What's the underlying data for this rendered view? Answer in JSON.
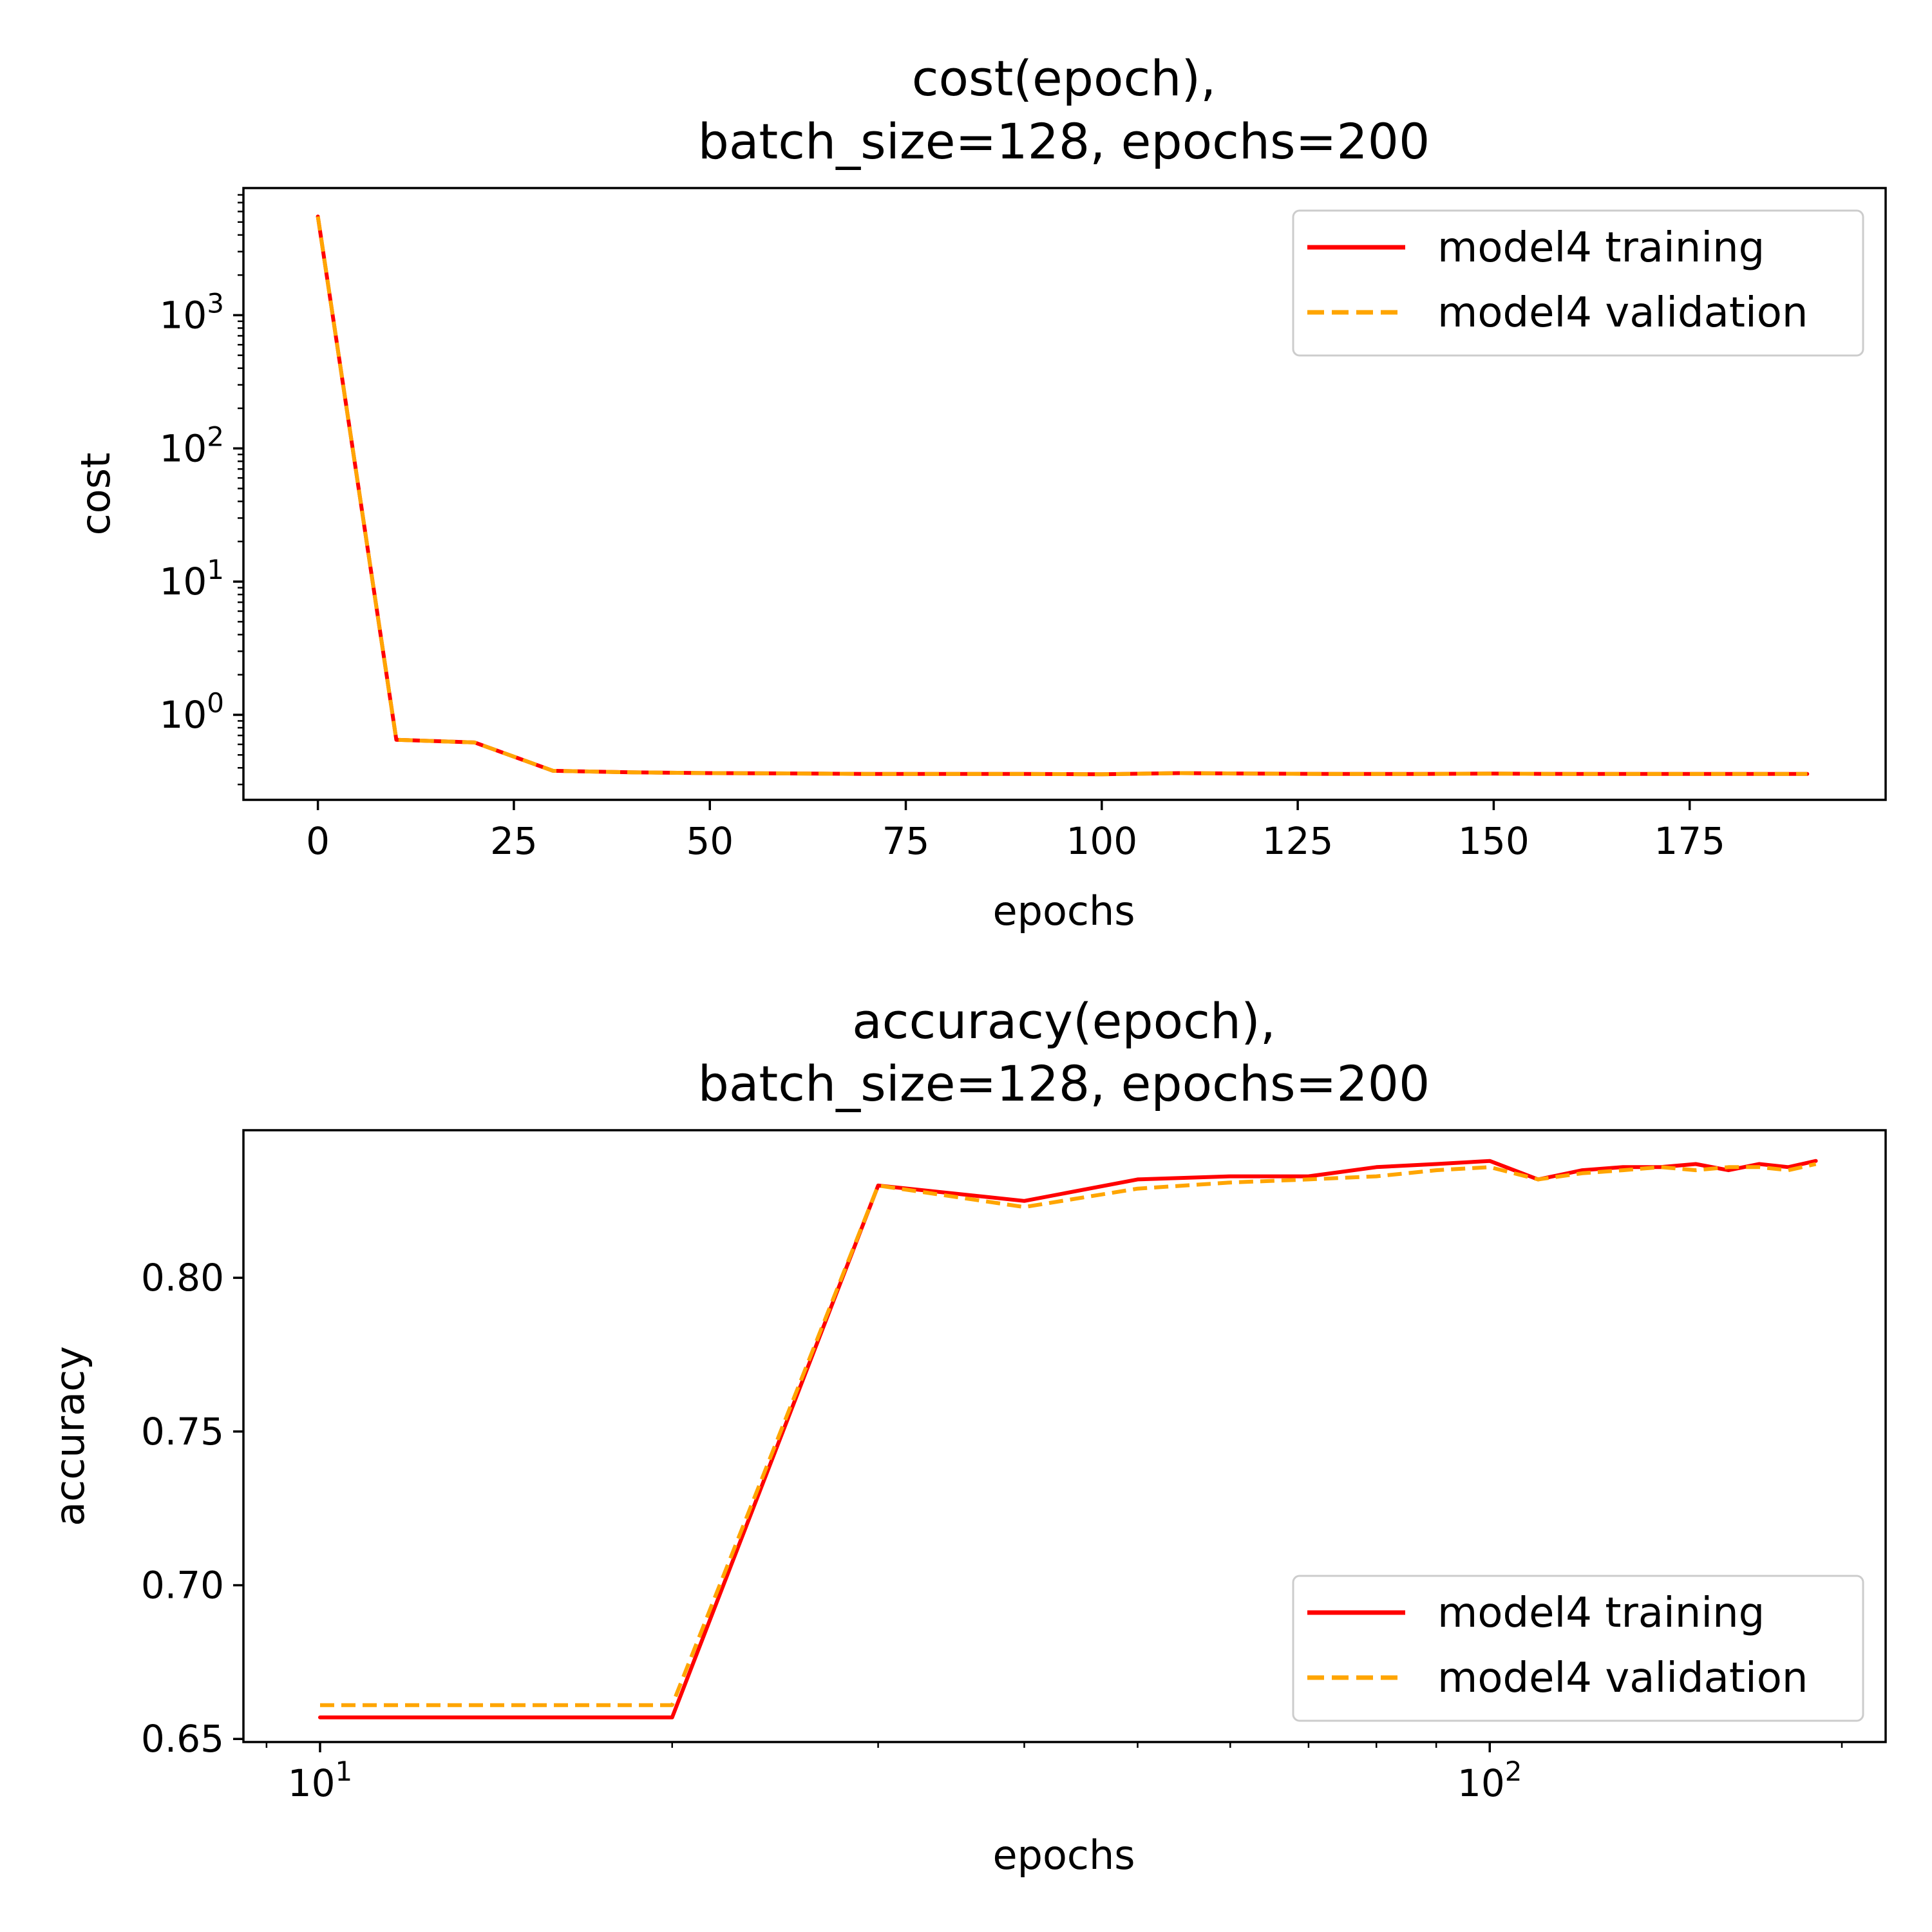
{
  "chart_data": [
    {
      "type": "line",
      "title": [
        "cost(epoch),",
        "batch_size=128, epochs=200"
      ],
      "xlabel": "epochs",
      "ylabel": "cost",
      "xscale": "linear",
      "yscale": "log",
      "xlim": [
        -9.5,
        200
      ],
      "ylim": [
        0.23,
        9000
      ],
      "xticks": [
        0,
        25,
        50,
        75,
        100,
        125,
        150,
        175
      ],
      "xtick_labels": [
        "0",
        "25",
        "50",
        "75",
        "100",
        "125",
        "150",
        "175"
      ],
      "yticks": [
        1,
        10,
        100,
        1000
      ],
      "ytick_labels": [
        {
          "base": "10",
          "exp": "0"
        },
        {
          "base": "10",
          "exp": "1"
        },
        {
          "base": "10",
          "exp": "2"
        },
        {
          "base": "10",
          "exp": "3"
        }
      ],
      "grid": false,
      "legend_position": "upper right",
      "x": [
        0,
        10,
        20,
        30,
        40,
        50,
        60,
        70,
        80,
        90,
        100,
        110,
        120,
        130,
        140,
        150,
        160,
        170,
        180,
        190
      ],
      "series": [
        {
          "name": "model4 training",
          "color": "#ff0000",
          "style": "solid",
          "values": [
            5500,
            0.65,
            0.62,
            0.38,
            0.37,
            0.365,
            0.363,
            0.36,
            0.36,
            0.36,
            0.358,
            0.365,
            0.362,
            0.36,
            0.36,
            0.362,
            0.36,
            0.36,
            0.36,
            0.36
          ]
        },
        {
          "name": "model4 validation",
          "color": "#ffa500",
          "style": "dashed",
          "values": [
            5500,
            0.65,
            0.62,
            0.38,
            0.37,
            0.365,
            0.363,
            0.36,
            0.36,
            0.36,
            0.358,
            0.365,
            0.362,
            0.36,
            0.36,
            0.362,
            0.36,
            0.36,
            0.36,
            0.36
          ]
        }
      ]
    },
    {
      "type": "line",
      "title": [
        "accuracy(epoch),",
        "batch_size=128, epochs=200"
      ],
      "xlabel": "epochs",
      "ylabel": "accuracy",
      "xscale": "log",
      "yscale": "linear",
      "xlim": [
        8.6,
        218
      ],
      "ylim": [
        0.649,
        0.848
      ],
      "xticks": [
        10,
        100
      ],
      "xtick_labels": [
        {
          "base": "10",
          "exp": "1"
        },
        {
          "base": "10",
          "exp": "2"
        }
      ],
      "yticks": [
        0.65,
        0.7,
        0.75,
        0.8
      ],
      "ytick_labels": [
        "0.65",
        "0.70",
        "0.75",
        "0.80"
      ],
      "grid": false,
      "legend_position": "lower right",
      "x": [
        10,
        20,
        30,
        40,
        50,
        60,
        70,
        80,
        90,
        100,
        110,
        120,
        130,
        140,
        150,
        160,
        170,
        180,
        190
      ],
      "series": [
        {
          "name": "model4 training",
          "color": "#ff0000",
          "style": "solid",
          "values": [
            0.657,
            0.657,
            0.83,
            0.825,
            0.832,
            0.833,
            0.833,
            0.836,
            0.837,
            0.838,
            0.832,
            0.835,
            0.836,
            0.836,
            0.837,
            0.835,
            0.837,
            0.836,
            0.838
          ]
        },
        {
          "name": "model4 validation",
          "color": "#ffa500",
          "style": "dashed",
          "values": [
            0.661,
            0.661,
            0.83,
            0.823,
            0.829,
            0.831,
            0.832,
            0.833,
            0.835,
            0.836,
            0.832,
            0.834,
            0.835,
            0.836,
            0.835,
            0.836,
            0.836,
            0.835,
            0.837
          ]
        }
      ]
    }
  ]
}
